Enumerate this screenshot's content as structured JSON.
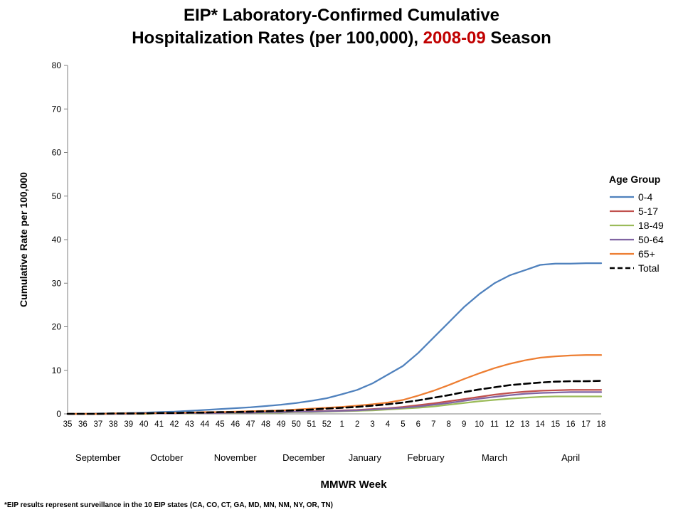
{
  "title": {
    "line1": "EIP* Laboratory-Confirmed Cumulative",
    "line2_pre": "Hospitalization Rates (per 100,000), ",
    "line2_highlight": "2008-09",
    "line2_post": " Season",
    "highlight_color": "#C00000"
  },
  "footnote": "*EIP results represent surveillance in the 10 EIP states (CA, CO, CT, GA, MD, MN, NM, NY, OR, TN)",
  "chart_data": {
    "type": "line",
    "title": "EIP* Laboratory-Confirmed Cumulative Hospitalization Rates (per 100,000), 2008-09 Season",
    "xlabel": "MMWR Week",
    "ylabel": "Cumulative Rate per 100,000",
    "ylim": [
      0,
      80
    ],
    "y_ticks": [
      0,
      10,
      20,
      30,
      40,
      50,
      60,
      70,
      80
    ],
    "grid": false,
    "legend_title": "Age Group",
    "legend_position": "right",
    "x_labels": [
      "35",
      "36",
      "37",
      "38",
      "39",
      "40",
      "41",
      "42",
      "43",
      "44",
      "45",
      "46",
      "47",
      "48",
      "49",
      "50",
      "51",
      "52",
      "1",
      "2",
      "3",
      "4",
      "5",
      "6",
      "7",
      "8",
      "9",
      "10",
      "11",
      "12",
      "13",
      "14",
      "15",
      "16",
      "17",
      "18"
    ],
    "months": [
      {
        "label": "September",
        "index": 2
      },
      {
        "label": "October",
        "index": 6.5
      },
      {
        "label": "November",
        "index": 11
      },
      {
        "label": "December",
        "index": 15.5
      },
      {
        "label": "January",
        "index": 19.5
      },
      {
        "label": "February",
        "index": 23.5
      },
      {
        "label": "March",
        "index": 28
      },
      {
        "label": "April",
        "index": 33
      }
    ],
    "series": [
      {
        "name": "0-4",
        "color": "#4F81BD",
        "dashed": false,
        "values": [
          0,
          0,
          0.1,
          0.1,
          0.2,
          0.3,
          0.4,
          0.5,
          0.7,
          0.9,
          1.1,
          1.3,
          1.5,
          1.8,
          2.1,
          2.5,
          3.0,
          3.6,
          4.5,
          5.5,
          7.0,
          9.0,
          11.0,
          14.0,
          17.5,
          21.0,
          24.5,
          27.5,
          30.0,
          31.8,
          33.0,
          34.2,
          34.5,
          34.5,
          34.6,
          34.6
        ]
      },
      {
        "name": "5-17",
        "color": "#C0504D",
        "dashed": false,
        "values": [
          0,
          0,
          0,
          0,
          0.1,
          0.1,
          0.1,
          0.2,
          0.2,
          0.3,
          0.3,
          0.3,
          0.4,
          0.4,
          0.5,
          0.5,
          0.6,
          0.7,
          0.8,
          0.9,
          1.1,
          1.3,
          1.6,
          2.0,
          2.4,
          2.9,
          3.4,
          3.9,
          4.4,
          4.8,
          5.1,
          5.3,
          5.4,
          5.5,
          5.5,
          5.5
        ]
      },
      {
        "name": "18-49",
        "color": "#9BBB59",
        "dashed": false,
        "values": [
          0,
          0,
          0,
          0,
          0,
          0,
          0.1,
          0.1,
          0.1,
          0.2,
          0.2,
          0.2,
          0.3,
          0.3,
          0.3,
          0.4,
          0.4,
          0.5,
          0.6,
          0.7,
          0.8,
          1.0,
          1.2,
          1.4,
          1.7,
          2.1,
          2.5,
          2.9,
          3.2,
          3.5,
          3.7,
          3.9,
          4.0,
          4.0,
          4.0,
          4.0
        ]
      },
      {
        "name": "50-64",
        "color": "#8064A2",
        "dashed": false,
        "values": [
          0,
          0,
          0,
          0,
          0,
          0.1,
          0.1,
          0.1,
          0.2,
          0.2,
          0.2,
          0.3,
          0.3,
          0.4,
          0.4,
          0.5,
          0.5,
          0.6,
          0.7,
          0.8,
          1.0,
          1.2,
          1.4,
          1.7,
          2.1,
          2.5,
          3.0,
          3.5,
          3.9,
          4.3,
          4.6,
          4.8,
          4.9,
          5.0,
          5.0,
          5.0
        ]
      },
      {
        "name": "65+",
        "color": "#ED7D31",
        "dashed": false,
        "values": [
          0,
          0,
          0,
          0.1,
          0.1,
          0.1,
          0.2,
          0.2,
          0.3,
          0.4,
          0.4,
          0.5,
          0.6,
          0.7,
          0.8,
          1.0,
          1.2,
          1.4,
          1.6,
          1.9,
          2.2,
          2.6,
          3.2,
          4.2,
          5.3,
          6.6,
          8.0,
          9.3,
          10.5,
          11.5,
          12.3,
          12.9,
          13.2,
          13.4,
          13.5,
          13.5
        ]
      },
      {
        "name": "Total",
        "color": "#000000",
        "dashed": true,
        "values": [
          0,
          0,
          0,
          0.1,
          0.1,
          0.1,
          0.2,
          0.2,
          0.3,
          0.3,
          0.4,
          0.4,
          0.5,
          0.6,
          0.7,
          0.8,
          1.0,
          1.2,
          1.4,
          1.6,
          1.9,
          2.2,
          2.6,
          3.1,
          3.7,
          4.3,
          5.0,
          5.6,
          6.1,
          6.6,
          6.9,
          7.2,
          7.4,
          7.5,
          7.5,
          7.6
        ]
      }
    ]
  }
}
